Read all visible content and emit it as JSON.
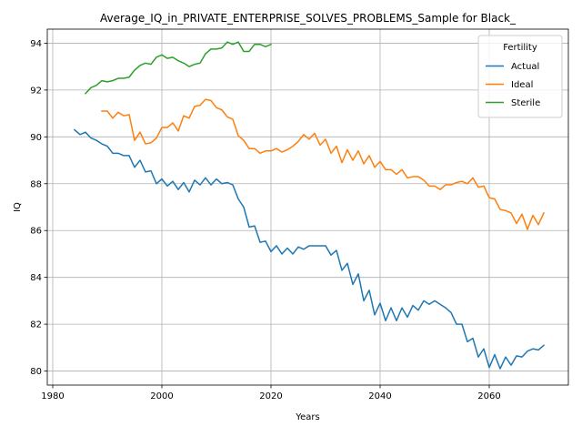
{
  "chart_data": {
    "type": "line",
    "title": "Average_IQ_in_PRIVATE_ENTERPRISE_SOLVES_PROBLEMS_Sample for Black_",
    "xlabel": "Years",
    "ylabel": "IQ",
    "xlim": [
      1979,
      2074.5
    ],
    "ylim": [
      79.4,
      94.6
    ],
    "xticks": [
      1980,
      2000,
      2020,
      2040,
      2060
    ],
    "yticks": [
      80,
      82,
      84,
      86,
      88,
      90,
      92,
      94
    ],
    "grid": true,
    "legend": {
      "title": "Fertility",
      "position": "top-right"
    },
    "series": [
      {
        "name": "Actual",
        "color": "#1f77b4",
        "x_start": 1984,
        "values": [
          90.3,
          90.1,
          90.2,
          89.95,
          89.85,
          89.7,
          89.6,
          89.3,
          89.3,
          89.2,
          89.2,
          88.7,
          89.0,
          88.5,
          88.55,
          88.0,
          88.2,
          87.9,
          88.1,
          87.75,
          88.05,
          87.65,
          88.15,
          87.95,
          88.25,
          87.95,
          88.2,
          88.0,
          88.05,
          87.95,
          87.35,
          87.0,
          86.15,
          86.2,
          85.5,
          85.55,
          85.1,
          85.35,
          85.0,
          85.25,
          85.0,
          85.3,
          85.2,
          85.35,
          85.35,
          85.35,
          85.35,
          84.95,
          85.15,
          84.3,
          84.6,
          83.7,
          84.15,
          83.0,
          83.45,
          82.4,
          82.9,
          82.15,
          82.7,
          82.15,
          82.7,
          82.3,
          82.8,
          82.6,
          83.0,
          82.85,
          83.0,
          82.85,
          82.7,
          82.5,
          82.0,
          82.0,
          81.25,
          81.4,
          80.6,
          80.95,
          80.15,
          80.7,
          80.1,
          80.6,
          80.25,
          80.65,
          80.6,
          80.85,
          80.95,
          80.9,
          81.1
        ]
      },
      {
        "name": "Ideal",
        "color": "#ff7f0e",
        "x_start": 1989,
        "values": [
          91.1,
          91.1,
          90.8,
          91.05,
          90.9,
          90.95,
          89.85,
          90.2,
          89.7,
          89.75,
          89.95,
          90.4,
          90.4,
          90.6,
          90.25,
          90.9,
          90.8,
          91.3,
          91.35,
          91.6,
          91.55,
          91.25,
          91.15,
          90.85,
          90.75,
          90.05,
          89.85,
          89.5,
          89.5,
          89.3,
          89.4,
          89.4,
          89.5,
          89.35,
          89.45,
          89.6,
          89.8,
          90.1,
          89.9,
          90.15,
          89.65,
          89.9,
          89.3,
          89.6,
          88.9,
          89.45,
          89.0,
          89.4,
          88.85,
          89.2,
          88.7,
          88.95,
          88.6,
          88.6,
          88.4,
          88.6,
          88.25,
          88.3,
          88.3,
          88.15,
          87.9,
          87.9,
          87.75,
          87.95,
          87.95,
          88.05,
          88.1,
          88.0,
          88.25,
          87.85,
          87.9,
          87.4,
          87.35,
          86.9,
          86.85,
          86.75,
          86.3,
          86.7,
          86.05,
          86.65,
          86.25,
          86.75
        ]
      },
      {
        "name": "Sterile",
        "color": "#2ca02c",
        "x_start": 1986,
        "values": [
          91.85,
          92.1,
          92.2,
          92.4,
          92.35,
          92.4,
          92.5,
          92.5,
          92.55,
          92.85,
          93.05,
          93.15,
          93.1,
          93.4,
          93.5,
          93.35,
          93.4,
          93.25,
          93.15,
          93.0,
          93.1,
          93.15,
          93.55,
          93.75,
          93.75,
          93.8,
          94.05,
          93.95,
          94.05,
          93.65,
          93.65,
          93.95,
          93.95,
          93.85,
          93.95
        ]
      }
    ]
  }
}
